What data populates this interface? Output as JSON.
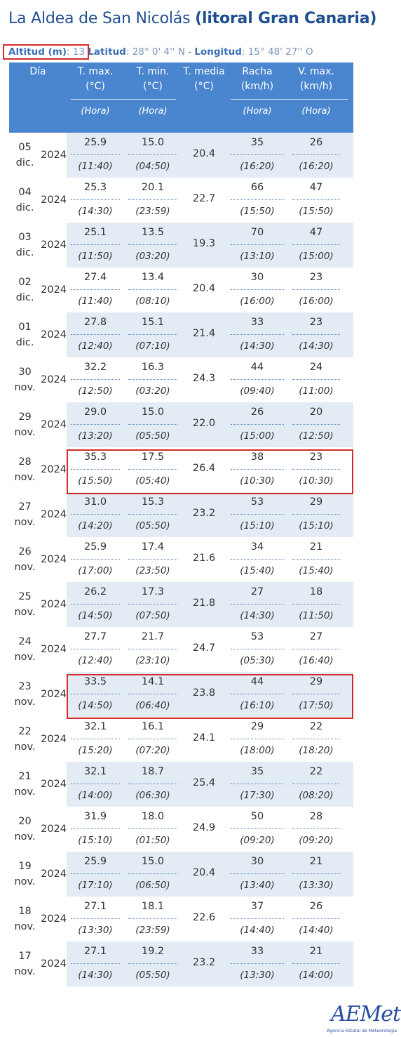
{
  "title": {
    "place": "La Aldea de San Nicolás",
    "region": "(litoral Gran Canaria)"
  },
  "meta": {
    "altitud_label": "Altitud (m)",
    "altitud_value": "13",
    "latitud_label": "Latitud",
    "latitud_value": "28° 0' 4'' N",
    "separator": "-",
    "longitud_label": "Longitud",
    "longitud_value": "15° 48' 27'' O"
  },
  "headers": {
    "dia": "Día",
    "tmax": [
      "T. max.",
      "(°C)"
    ],
    "tmin": [
      "T. min.",
      "(°C)"
    ],
    "tmedia": [
      "T. media",
      "(°C)"
    ],
    "racha": [
      "Racha",
      "(km/h)"
    ],
    "vmax": [
      "V. max.",
      "(km/h)"
    ],
    "hora": "(Hora)"
  },
  "rows": [
    {
      "day": [
        "05 dic.",
        "2024"
      ],
      "tmax": "25.9",
      "tmax_h": "(11:40)",
      "tmin": "15.0",
      "tmin_h": "(04:50)",
      "tmed": "20.4",
      "racha": "35",
      "racha_h": "(16:20)",
      "vmax": "26",
      "vmax_h": "(16:20)"
    },
    {
      "day": [
        "04 dic.",
        "2024"
      ],
      "tmax": "25.3",
      "tmax_h": "(14:30)",
      "tmin": "20.1",
      "tmin_h": "(23:59)",
      "tmed": "22.7",
      "racha": "66",
      "racha_h": "(15:50)",
      "vmax": "47",
      "vmax_h": "(15:50)"
    },
    {
      "day": [
        "03 dic.",
        "2024"
      ],
      "tmax": "25.1",
      "tmax_h": "(11:50)",
      "tmin": "13.5",
      "tmin_h": "(03:20)",
      "tmed": "19.3",
      "racha": "70",
      "racha_h": "(13:10)",
      "vmax": "47",
      "vmax_h": "(15:00)"
    },
    {
      "day": [
        "02 dic.",
        "2024"
      ],
      "tmax": "27.4",
      "tmax_h": "(11:40)",
      "tmin": "13.4",
      "tmin_h": "(08:10)",
      "tmed": "20.4",
      "racha": "30",
      "racha_h": "(16:00)",
      "vmax": "23",
      "vmax_h": "(16:00)"
    },
    {
      "day": [
        "01 dic.",
        "2024"
      ],
      "tmax": "27.8",
      "tmax_h": "(12:40)",
      "tmin": "15.1",
      "tmin_h": "(07:10)",
      "tmed": "21.4",
      "racha": "33",
      "racha_h": "(14:30)",
      "vmax": "23",
      "vmax_h": "(14:30)"
    },
    {
      "day": [
        "30 nov.",
        "2024"
      ],
      "tmax": "32.2",
      "tmax_h": "(12:50)",
      "tmin": "16.3",
      "tmin_h": "(03:20)",
      "tmed": "24.3",
      "racha": "44",
      "racha_h": "(09:40)",
      "vmax": "24",
      "vmax_h": "(11:00)"
    },
    {
      "day": [
        "29 nov.",
        "2024"
      ],
      "tmax": "29.0",
      "tmax_h": "(13:20)",
      "tmin": "15.0",
      "tmin_h": "(05:50)",
      "tmed": "22.0",
      "racha": "26",
      "racha_h": "(15:00)",
      "vmax": "20",
      "vmax_h": "(12:50)"
    },
    {
      "day": [
        "28 nov.",
        "2024"
      ],
      "tmax": "35.3",
      "tmax_h": "(15:50)",
      "tmin": "17.5",
      "tmin_h": "(05:40)",
      "tmed": "26.4",
      "racha": "38",
      "racha_h": "(10:30)",
      "vmax": "23",
      "vmax_h": "(10:30)"
    },
    {
      "day": [
        "27 nov.",
        "2024"
      ],
      "tmax": "31.0",
      "tmax_h": "(14:20)",
      "tmin": "15.3",
      "tmin_h": "(05:50)",
      "tmed": "23.2",
      "racha": "53",
      "racha_h": "(15:10)",
      "vmax": "29",
      "vmax_h": "(15:10)"
    },
    {
      "day": [
        "26 nov.",
        "2024"
      ],
      "tmax": "25.9",
      "tmax_h": "(17:00)",
      "tmin": "17.4",
      "tmin_h": "(23:50)",
      "tmed": "21.6",
      "racha": "34",
      "racha_h": "(15:40)",
      "vmax": "21",
      "vmax_h": "(15:40)"
    },
    {
      "day": [
        "25 nov.",
        "2024"
      ],
      "tmax": "26.2",
      "tmax_h": "(14:50)",
      "tmin": "17.3",
      "tmin_h": "(07:50)",
      "tmed": "21.8",
      "racha": "27",
      "racha_h": "(14:30)",
      "vmax": "18",
      "vmax_h": "(11:50)"
    },
    {
      "day": [
        "24 nov.",
        "2024"
      ],
      "tmax": "27.7",
      "tmax_h": "(12:40)",
      "tmin": "21.7",
      "tmin_h": "(23:10)",
      "tmed": "24.7",
      "racha": "53",
      "racha_h": "(05:30)",
      "vmax": "27",
      "vmax_h": "(16:40)"
    },
    {
      "day": [
        "23 nov.",
        "2024"
      ],
      "tmax": "33.5",
      "tmax_h": "(14:50)",
      "tmin": "14.1",
      "tmin_h": "(06:40)",
      "tmed": "23.8",
      "racha": "44",
      "racha_h": "(16:10)",
      "vmax": "29",
      "vmax_h": "(17:50)"
    },
    {
      "day": [
        "22 nov.",
        "2024"
      ],
      "tmax": "32.1",
      "tmax_h": "(15:20)",
      "tmin": "16.1",
      "tmin_h": "(07:20)",
      "tmed": "24.1",
      "racha": "29",
      "racha_h": "(18:00)",
      "vmax": "22",
      "vmax_h": "(18:20)"
    },
    {
      "day": [
        "21 nov.",
        "2024"
      ],
      "tmax": "32.1",
      "tmax_h": "(14:00)",
      "tmin": "18.7",
      "tmin_h": "(06:30)",
      "tmed": "25.4",
      "racha": "35",
      "racha_h": "(17:30)",
      "vmax": "22",
      "vmax_h": "(08:20)"
    },
    {
      "day": [
        "20 nov.",
        "2024"
      ],
      "tmax": "31.9",
      "tmax_h": "(15:10)",
      "tmin": "18.0",
      "tmin_h": "(01:50)",
      "tmed": "24.9",
      "racha": "50",
      "racha_h": "(09:20)",
      "vmax": "28",
      "vmax_h": "(09:20)"
    },
    {
      "day": [
        "19 nov.",
        "2024"
      ],
      "tmax": "25.9",
      "tmax_h": "(17:10)",
      "tmin": "15.0",
      "tmin_h": "(06:50)",
      "tmed": "20.4",
      "racha": "30",
      "racha_h": "(13:40)",
      "vmax": "21",
      "vmax_h": "(13:30)"
    },
    {
      "day": [
        "18 nov.",
        "2024"
      ],
      "tmax": "27.1",
      "tmax_h": "(13:30)",
      "tmin": "18.1",
      "tmin_h": "(23:59)",
      "tmed": "22.6",
      "racha": "37",
      "racha_h": "(14:40)",
      "vmax": "26",
      "vmax_h": "(14:40)"
    },
    {
      "day": [
        "17 nov.",
        "2024"
      ],
      "tmax": "27.1",
      "tmax_h": "(14:30)",
      "tmin": "19.2",
      "tmin_h": "(05:50)",
      "tmed": "23.2",
      "racha": "33",
      "racha_h": "(13:30)",
      "vmax": "21",
      "vmax_h": "(14:00)"
    }
  ],
  "logo": {
    "wordmark": "AEMet",
    "subtitle": "Agencia Estatal de Meteorología"
  },
  "colors": {
    "header_bg": "#4a86cf",
    "row_shade": "#e3ecf4",
    "title": "#1f4f8f",
    "highlight": "#d42a2a"
  }
}
